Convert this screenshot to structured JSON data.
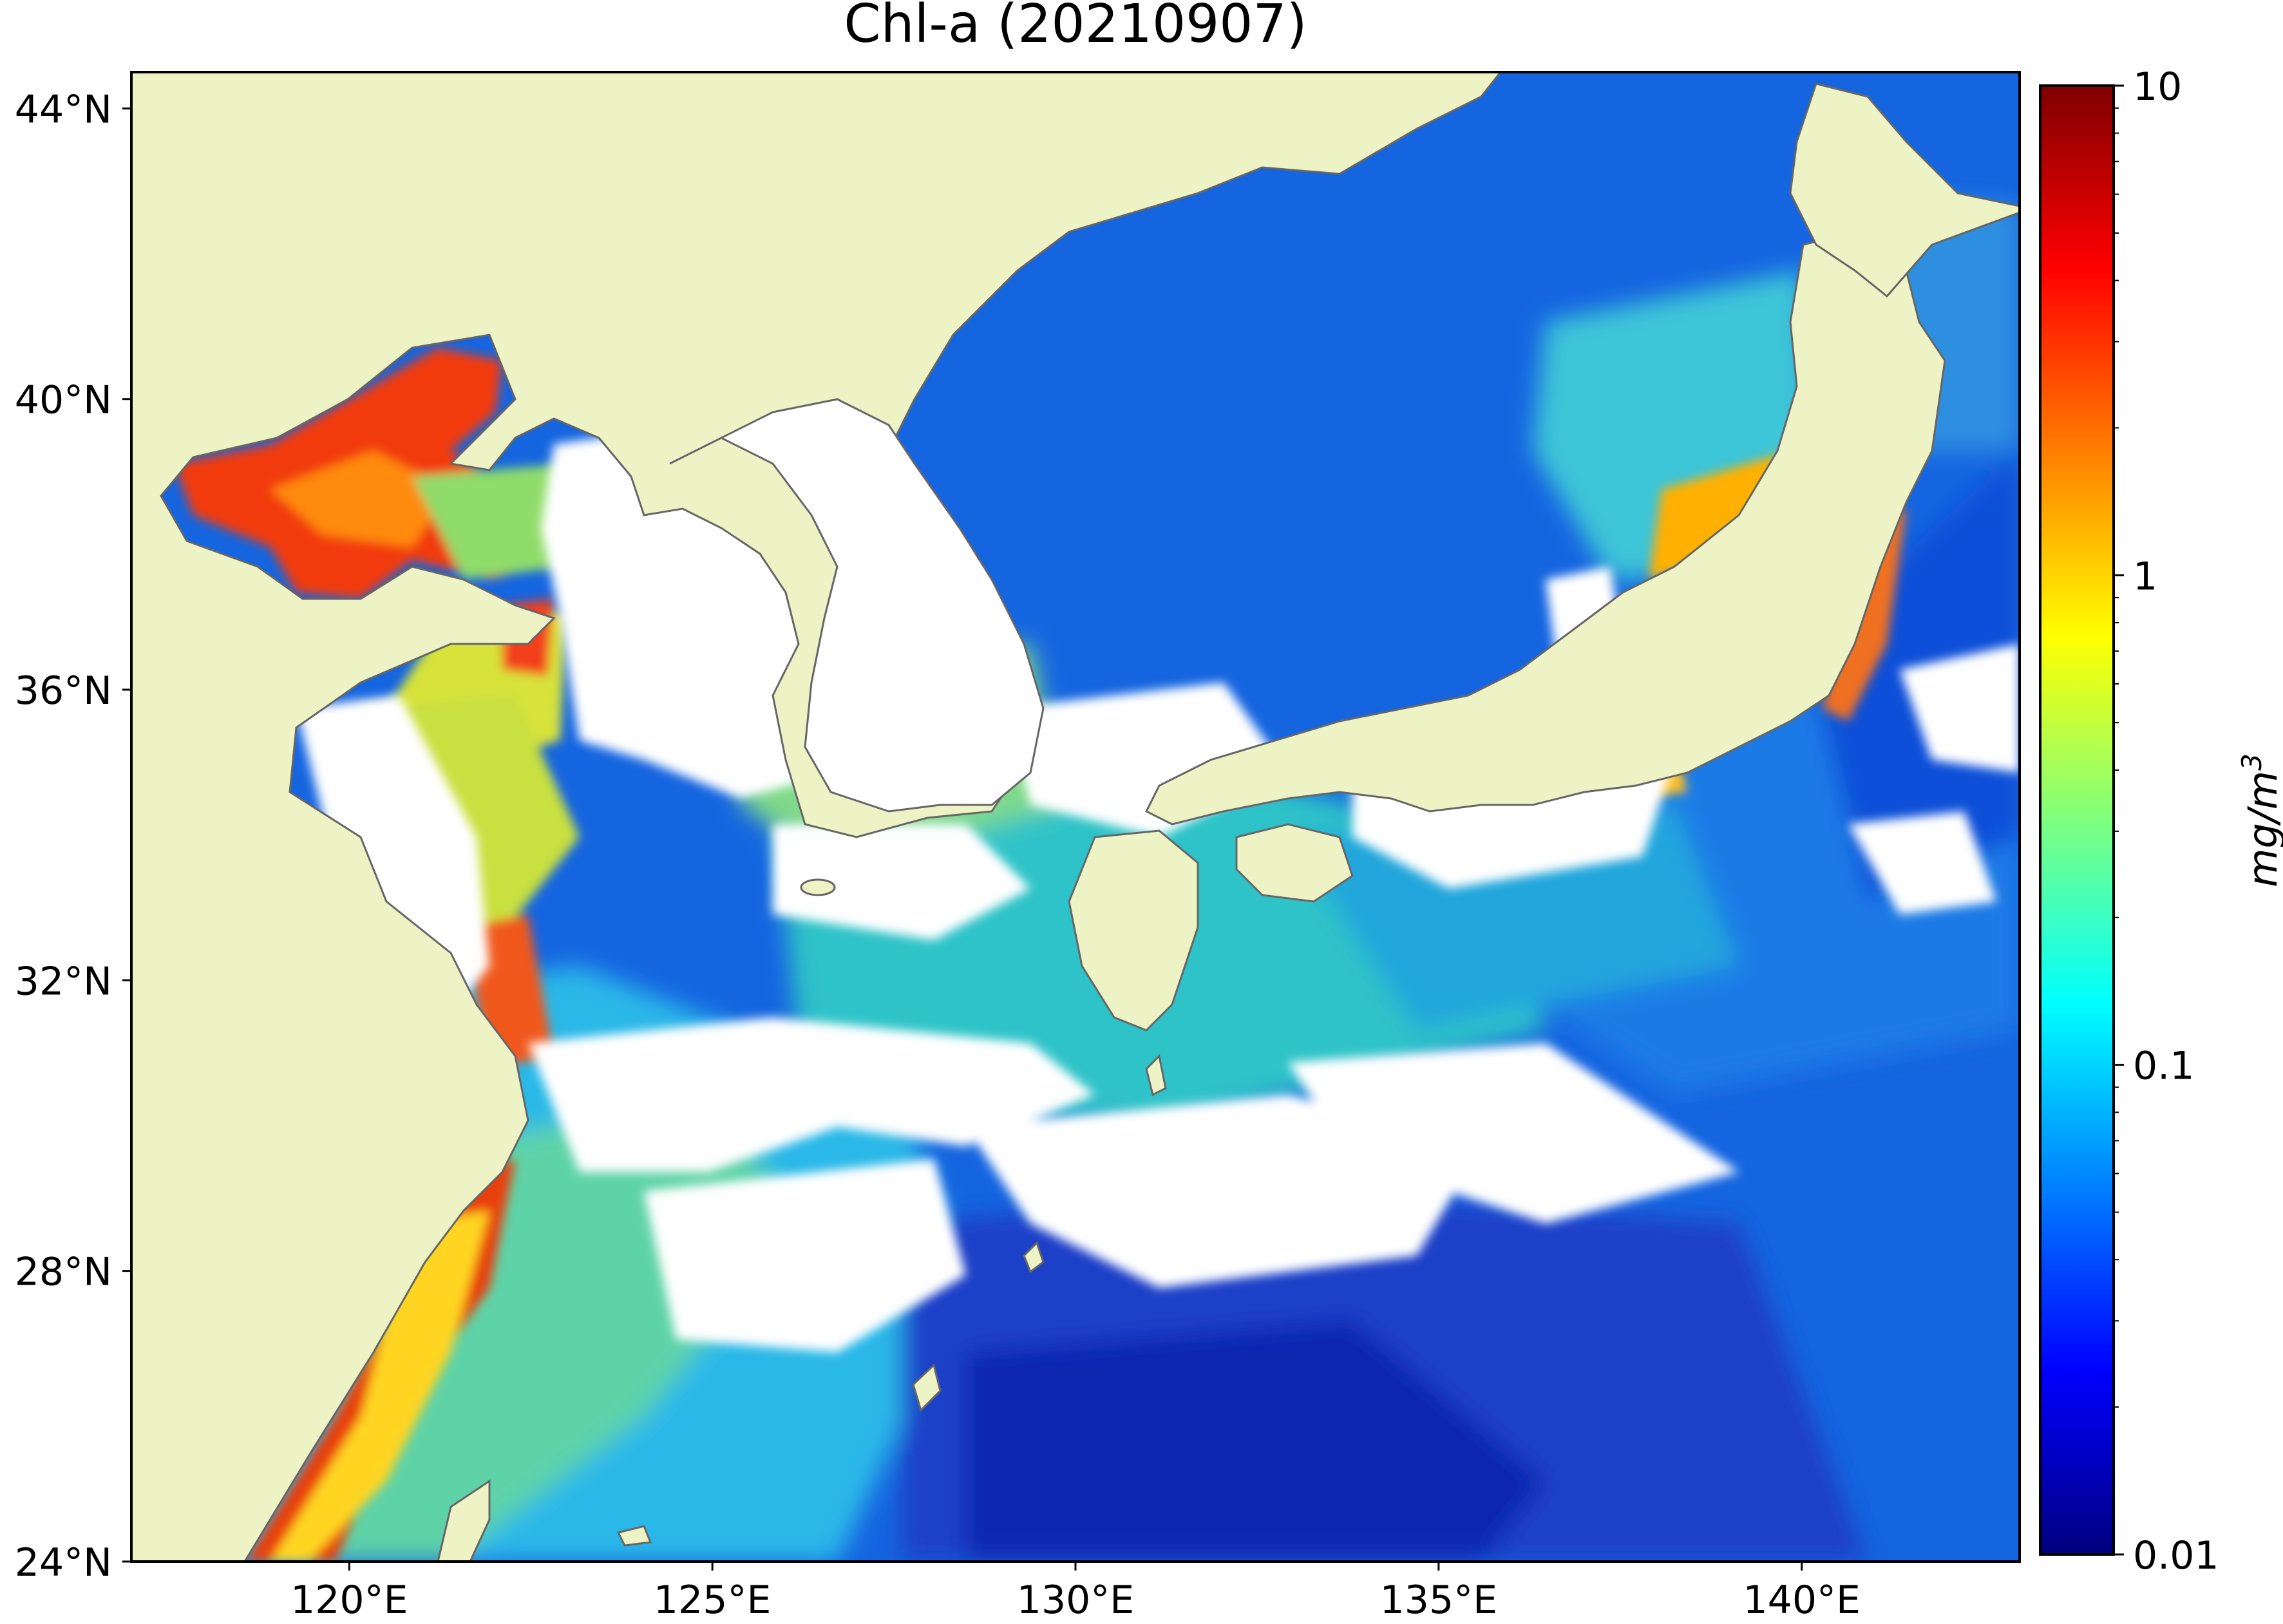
{
  "title": "Chl-a (20210907)",
  "map": {
    "lon_range": [
      117,
      143
    ],
    "lat_range": [
      24,
      44.5
    ],
    "lon_ticks": [
      {
        "value": 120,
        "label": "120°E"
      },
      {
        "value": 125,
        "label": "125°E"
      },
      {
        "value": 130,
        "label": "130°E"
      },
      {
        "value": 135,
        "label": "135°E"
      },
      {
        "value": 140,
        "label": "140°E"
      }
    ],
    "lat_ticks": [
      {
        "value": 24,
        "label": "24°N"
      },
      {
        "value": 28,
        "label": "28°N"
      },
      {
        "value": 32,
        "label": "32°N"
      },
      {
        "value": 36,
        "label": "36°N"
      },
      {
        "value": 40,
        "label": "40°N"
      },
      {
        "value": 44,
        "label": "44°N"
      }
    ],
    "land_color": "#eef3c6",
    "no_data_color": "#ffffff",
    "coastline_color": "#666666"
  },
  "colorbar": {
    "label_parts": {
      "unit": "mg/m",
      "exponent": "3"
    },
    "scale": "log",
    "range": [
      0.01,
      10
    ],
    "ticks": [
      {
        "value": 10,
        "label": "10"
      },
      {
        "value": 1,
        "label": "1"
      },
      {
        "value": 0.1,
        "label": "0.1"
      },
      {
        "value": 0.01,
        "label": "0.01"
      }
    ],
    "colormap": "jet",
    "gradient_colors": [
      "#00007f",
      "#0000ff",
      "#007fff",
      "#00ffff",
      "#7fff7f",
      "#ffff00",
      "#ff7f00",
      "#ff0000",
      "#7f0000"
    ]
  }
}
